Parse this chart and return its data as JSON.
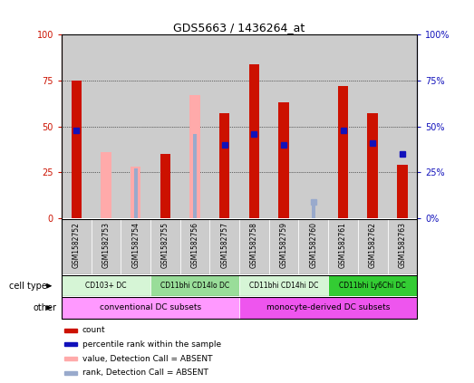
{
  "title": "GDS5663 / 1436264_at",
  "samples": [
    "GSM1582752",
    "GSM1582753",
    "GSM1582754",
    "GSM1582755",
    "GSM1582756",
    "GSM1582757",
    "GSM1582758",
    "GSM1582759",
    "GSM1582760",
    "GSM1582761",
    "GSM1582762",
    "GSM1582763"
  ],
  "red_bars": [
    75,
    0,
    0,
    35,
    0,
    57,
    84,
    63,
    2,
    72,
    57,
    29
  ],
  "blue_bars": [
    48,
    0,
    0,
    0,
    46,
    40,
    46,
    40,
    0,
    48,
    41,
    35
  ],
  "pink_bars": [
    0,
    36,
    28,
    0,
    67,
    0,
    0,
    0,
    0,
    0,
    0,
    0
  ],
  "lightblue_bars": [
    0,
    0,
    27,
    0,
    46,
    0,
    0,
    0,
    9,
    0,
    0,
    0
  ],
  "detection_absent": [
    false,
    true,
    true,
    false,
    true,
    false,
    false,
    false,
    true,
    false,
    false,
    false
  ],
  "cell_type_groups": [
    {
      "label": "CD103+ DC",
      "start": 0,
      "end": 2,
      "color": "#d6f5d6"
    },
    {
      "label": "CD11bhi CD14lo DC",
      "start": 3,
      "end": 5,
      "color": "#99dd99"
    },
    {
      "label": "CD11bhi CD14hi DC",
      "start": 6,
      "end": 8,
      "color": "#d6f5d6"
    },
    {
      "label": "CD11bhi Ly6Chi DC",
      "start": 9,
      "end": 11,
      "color": "#33cc33"
    }
  ],
  "other_groups": [
    {
      "label": "conventional DC subsets",
      "start": 0,
      "end": 5,
      "color": "#ff99ff"
    },
    {
      "label": "monocyte-derived DC subsets",
      "start": 6,
      "end": 11,
      "color": "#ee55ee"
    }
  ],
  "ylim": [
    0,
    100
  ],
  "grid_lines": [
    25,
    50,
    75
  ],
  "red_color": "#cc1100",
  "blue_color": "#1111bb",
  "pink_color": "#ffaaaa",
  "lightblue_color": "#99aacc",
  "bg_color": "#cccccc",
  "legend_items": [
    {
      "label": "count",
      "color": "#cc1100"
    },
    {
      "label": "percentile rank within the sample",
      "color": "#1111bb"
    },
    {
      "label": "value, Detection Call = ABSENT",
      "color": "#ffaaaa"
    },
    {
      "label": "rank, Detection Call = ABSENT",
      "color": "#99aacc"
    }
  ]
}
